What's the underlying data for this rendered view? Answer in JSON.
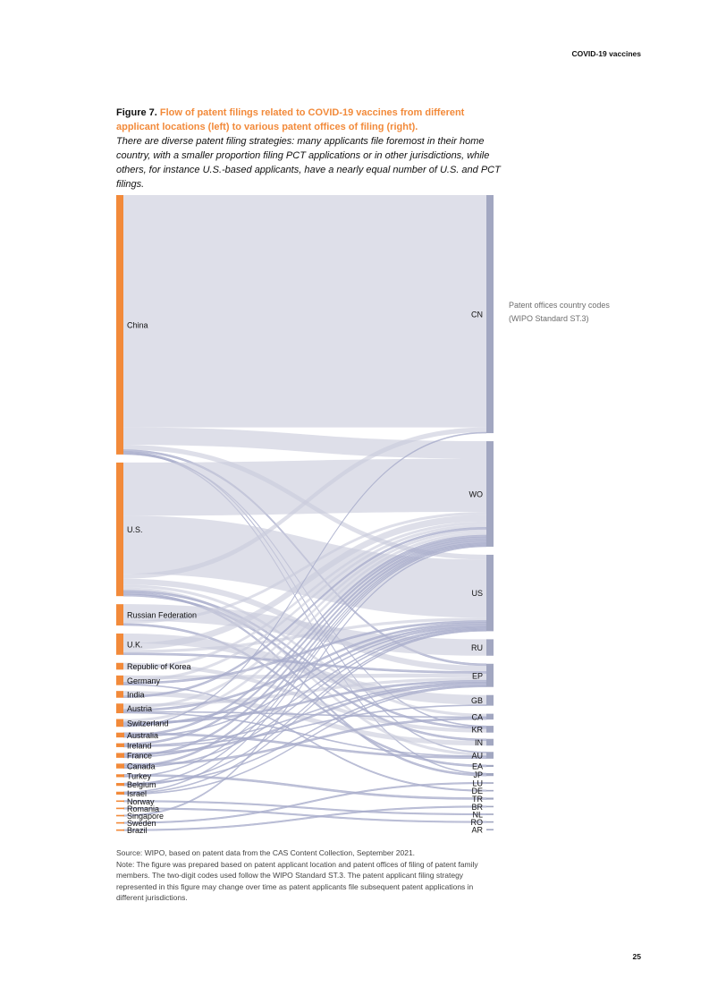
{
  "header": {
    "section": "COVID-19 vaccines",
    "page_number": "25"
  },
  "figure": {
    "number": "Figure 7.",
    "title": "Flow of patent filings related to COVID-19 vaccines from different applicant locations (left) to various patent offices of filing (right).",
    "description": "There are diverse patent filing strategies: many applicants file foremost in their home country, with a smaller proportion filing PCT applications or in other jurisdictions, while others, for instance U.S.-based applicants, have a nearly equal number of U.S. and PCT filings."
  },
  "legend_note": {
    "line1": "Patent offices country codes",
    "line2": "(WIPO Standard ST.3)"
  },
  "footnote": {
    "source": "Source: WIPO, based on patent data from the CAS Content Collection, September 2021.",
    "note": "Note: The figure was prepared based on patent applicant location and patent offices of filing of patent family members. The two-digit codes used follow the WIPO Standard ST.3. The patent applicant filing strategy represented in this figure may change over time as patent applicants file subsequent patent applications in different jurisdictions."
  },
  "colors": {
    "source_node": "#f28a3a",
    "target_node": "#a2a7c1",
    "flow": "#c9cbdc",
    "flow_strong": "#a8accb"
  },
  "chart_data": {
    "type": "sankey",
    "sources": [
      "China",
      "U.S.",
      "Russian Federation",
      "U.K.",
      "Republic of Korea",
      "Germany",
      "India",
      "Austria",
      "Switzerland",
      "Australia",
      "Ireland",
      "France",
      "Canada",
      "Turkey",
      "Belgium",
      "Israel",
      "Norway",
      "Romania",
      "Singapore",
      "Sweden",
      "Brazil"
    ],
    "targets": [
      "CN",
      "WO",
      "US",
      "RU",
      "EP",
      "GB",
      "CA",
      "KR",
      "IN",
      "AU",
      "EA",
      "JP",
      "LU",
      "DE",
      "TR",
      "BR",
      "NL",
      "RO",
      "AR"
    ],
    "links": [
      {
        "source": "China",
        "target": "CN",
        "value": 240
      },
      {
        "source": "China",
        "target": "WO",
        "value": 18
      },
      {
        "source": "China",
        "target": "US",
        "value": 5
      },
      {
        "source": "China",
        "target": "EP",
        "value": 2
      },
      {
        "source": "China",
        "target": "AU",
        "value": 1
      },
      {
        "source": "China",
        "target": "JP",
        "value": 1
      },
      {
        "source": "China",
        "target": "KR",
        "value": 1
      },
      {
        "source": "U.S.",
        "target": "WO",
        "value": 55
      },
      {
        "source": "U.S.",
        "target": "US",
        "value": 60
      },
      {
        "source": "U.S.",
        "target": "CN",
        "value": 5
      },
      {
        "source": "U.S.",
        "target": "EP",
        "value": 6
      },
      {
        "source": "U.S.",
        "target": "CA",
        "value": 3
      },
      {
        "source": "U.S.",
        "target": "AU",
        "value": 3
      },
      {
        "source": "U.S.",
        "target": "KR",
        "value": 2
      },
      {
        "source": "U.S.",
        "target": "JP",
        "value": 2
      },
      {
        "source": "U.S.",
        "target": "IN",
        "value": 2
      },
      {
        "source": "Russian Federation",
        "target": "RU",
        "value": 17
      },
      {
        "source": "Russian Federation",
        "target": "WO",
        "value": 3
      },
      {
        "source": "Russian Federation",
        "target": "EA",
        "value": 2
      },
      {
        "source": "U.K.",
        "target": "GB",
        "value": 10
      },
      {
        "source": "U.K.",
        "target": "WO",
        "value": 7
      },
      {
        "source": "U.K.",
        "target": "US",
        "value": 3
      },
      {
        "source": "U.K.",
        "target": "EP",
        "value": 2
      },
      {
        "source": "Republic of Korea",
        "target": "KR",
        "value": 4
      },
      {
        "source": "Republic of Korea",
        "target": "WO",
        "value": 3
      },
      {
        "source": "Germany",
        "target": "EP",
        "value": 4
      },
      {
        "source": "Germany",
        "target": "WO",
        "value": 3
      },
      {
        "source": "Germany",
        "target": "US",
        "value": 2
      },
      {
        "source": "Germany",
        "target": "DE",
        "value": 1
      },
      {
        "source": "India",
        "target": "IN",
        "value": 5
      },
      {
        "source": "India",
        "target": "WO",
        "value": 2
      },
      {
        "source": "Austria",
        "target": "EP",
        "value": 3
      },
      {
        "source": "Austria",
        "target": "WO",
        "value": 3
      },
      {
        "source": "Austria",
        "target": "US",
        "value": 2
      },
      {
        "source": "Austria",
        "target": "CA",
        "value": 1
      },
      {
        "source": "Austria",
        "target": "AU",
        "value": 1
      },
      {
        "source": "Switzerland",
        "target": "WO",
        "value": 3
      },
      {
        "source": "Switzerland",
        "target": "EP",
        "value": 2
      },
      {
        "source": "Switzerland",
        "target": "US",
        "value": 2
      },
      {
        "source": "Switzerland",
        "target": "CN",
        "value": 1
      },
      {
        "source": "Australia",
        "target": "AU",
        "value": 2
      },
      {
        "source": "Australia",
        "target": "WO",
        "value": 2
      },
      {
        "source": "Australia",
        "target": "US",
        "value": 1
      },
      {
        "source": "Ireland",
        "target": "WO",
        "value": 2
      },
      {
        "source": "Ireland",
        "target": "EP",
        "value": 1
      },
      {
        "source": "Ireland",
        "target": "GB",
        "value": 1
      },
      {
        "source": "France",
        "target": "EP",
        "value": 2
      },
      {
        "source": "France",
        "target": "WO",
        "value": 2
      },
      {
        "source": "France",
        "target": "US",
        "value": 1
      },
      {
        "source": "Canada",
        "target": "CA",
        "value": 2
      },
      {
        "source": "Canada",
        "target": "WO",
        "value": 2
      },
      {
        "source": "Canada",
        "target": "US",
        "value": 1
      },
      {
        "source": "Turkey",
        "target": "TR",
        "value": 2
      },
      {
        "source": "Turkey",
        "target": "WO",
        "value": 1
      },
      {
        "source": "Belgium",
        "target": "EP",
        "value": 1
      },
      {
        "source": "Belgium",
        "target": "WO",
        "value": 1
      },
      {
        "source": "Belgium",
        "target": "US",
        "value": 1
      },
      {
        "source": "Israel",
        "target": "WO",
        "value": 1
      },
      {
        "source": "Israel",
        "target": "US",
        "value": 1
      },
      {
        "source": "Israel",
        "target": "EP",
        "value": 1
      },
      {
        "source": "Norway",
        "target": "NL",
        "value": 1
      },
      {
        "source": "Romania",
        "target": "RO",
        "value": 1
      },
      {
        "source": "Singapore",
        "target": "WO",
        "value": 1
      },
      {
        "source": "Sweden",
        "target": "LU",
        "value": 1
      },
      {
        "source": "Brazil",
        "target": "BR",
        "value": 1
      }
    ]
  }
}
